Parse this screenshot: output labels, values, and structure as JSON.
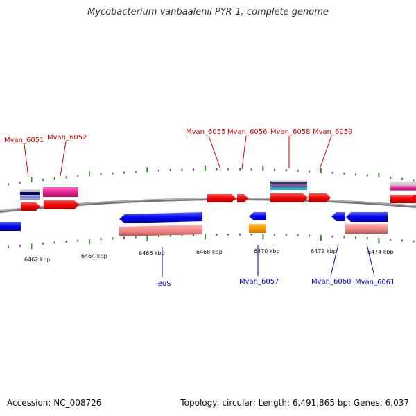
{
  "title": "Mycobacterium vanbaalenii PYR-1, complete genome",
  "footer": {
    "accession": "Accession: NC_008726",
    "topology": "Topology: circular; Length: 6,491,865 bp; Genes: 6,037"
  },
  "colors": {
    "forward_label": "#cc0000",
    "reverse_label": "#0000cc",
    "tick": "#2e8b2e",
    "backbone": "#888888"
  },
  "coordinate_labels": [
    "6462 kbp",
    "6464 kbp",
    "6466 kbp",
    "6468 kbp",
    "6470 kbp",
    "6472 kbp",
    "6474 kbp"
  ],
  "forward_genes": [
    "Mvan_6051",
    "Mvan_6052",
    "Mvan_6055",
    "Mvan_6056",
    "Mvan_6058",
    "Mvan_6059"
  ],
  "reverse_genes": [
    "leuS",
    "Mvan_6057",
    "Mvan_6060",
    "Mvan_6061"
  ]
}
